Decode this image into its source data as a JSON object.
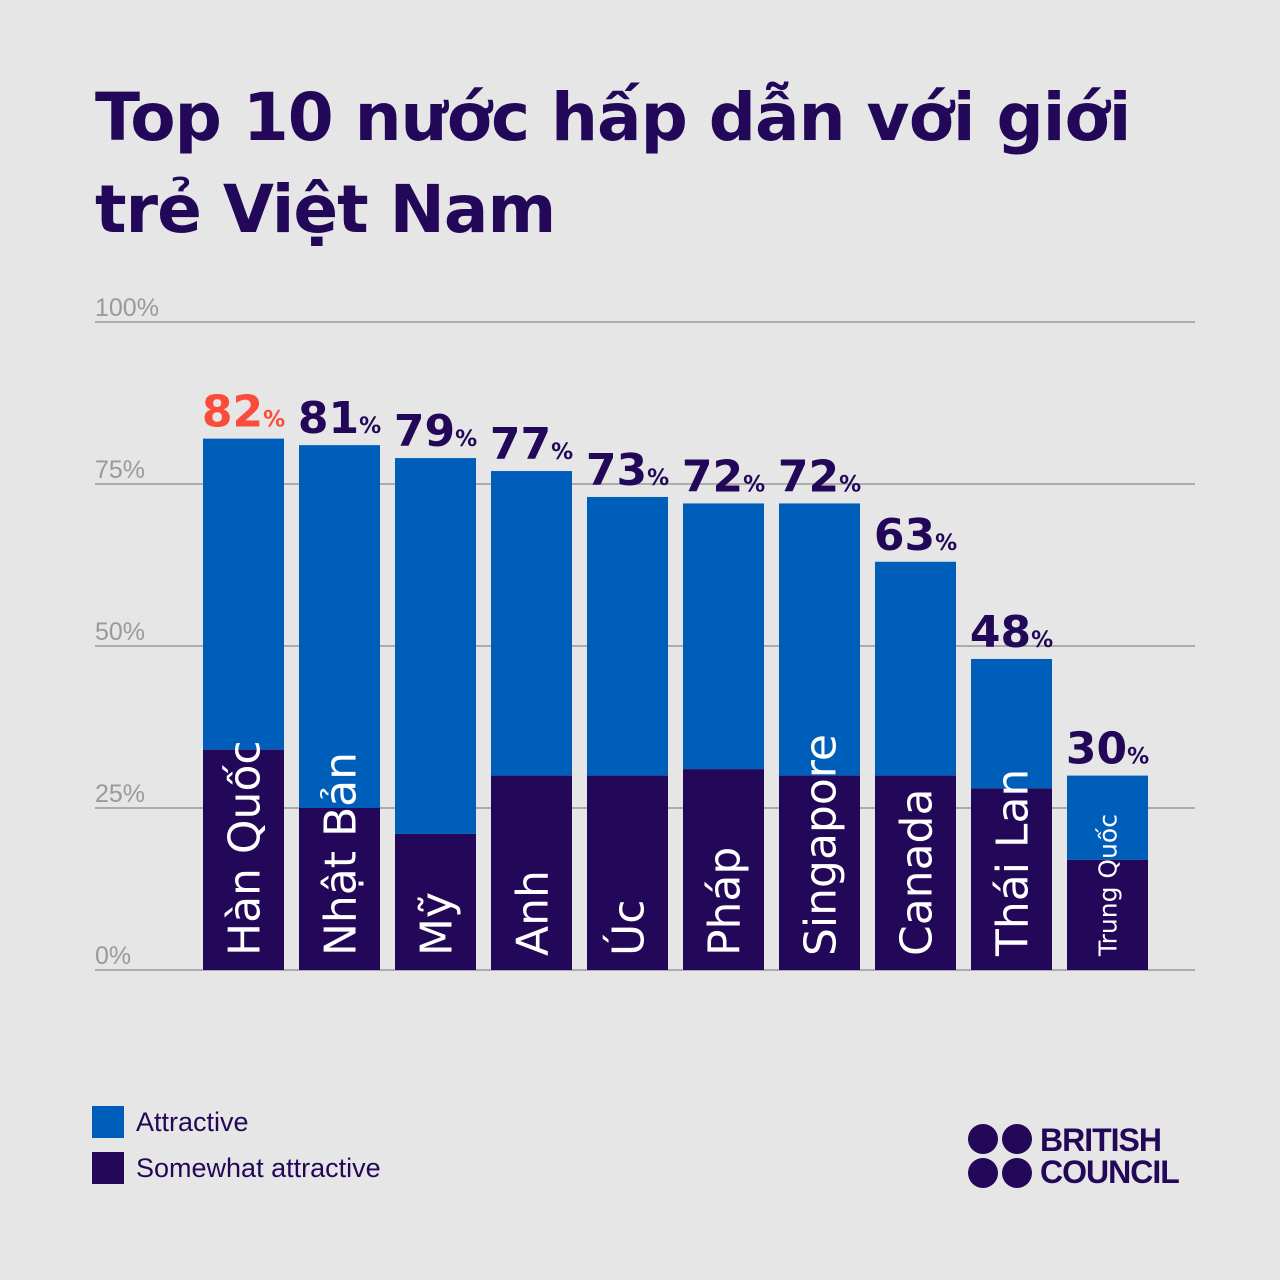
{
  "title": "Top 10 nước hấp dẫn với giới trẻ Việt Nam",
  "colors": {
    "attractive": "#005ebb",
    "somewhat": "#230859",
    "highlight": "#fb4b3a",
    "text": "#230859",
    "axis": "#999999",
    "background": "#e6e6e6"
  },
  "legend": [
    {
      "label": "Attractive",
      "color": "#005ebb"
    },
    {
      "label": "Somewhat attractive",
      "color": "#230859"
    }
  ],
  "logo": {
    "line1": "BRITISH",
    "line2": "COUNCIL",
    "color": "#230859"
  },
  "chart_data": {
    "type": "bar",
    "stacked": true,
    "title": "Top 10 nước hấp dẫn với giới trẻ Việt Nam",
    "categories": [
      "Hàn Quốc",
      "Nhật Bản",
      "Mỹ",
      "Anh",
      "Úc",
      "Pháp",
      "Singapore",
      "Canada",
      "Thái Lan",
      "Trung Quốc"
    ],
    "totals": [
      82,
      81,
      79,
      77,
      73,
      72,
      72,
      63,
      48,
      30
    ],
    "series": [
      {
        "name": "Somewhat attractive",
        "color": "#230859",
        "values": [
          34,
          25,
          21,
          30,
          30,
          31,
          30,
          30,
          28,
          17
        ]
      },
      {
        "name": "Attractive",
        "color": "#005ebb",
        "values": [
          48,
          56,
          58,
          47,
          43,
          41,
          42,
          33,
          20,
          13
        ]
      }
    ],
    "value_suffix": "%",
    "highlight_index": 0,
    "ylim": [
      0,
      100
    ],
    "yticks": [
      "0%",
      "25%",
      "50%",
      "75%",
      "100%"
    ],
    "grid": true,
    "legend_position": "bottom-left"
  }
}
